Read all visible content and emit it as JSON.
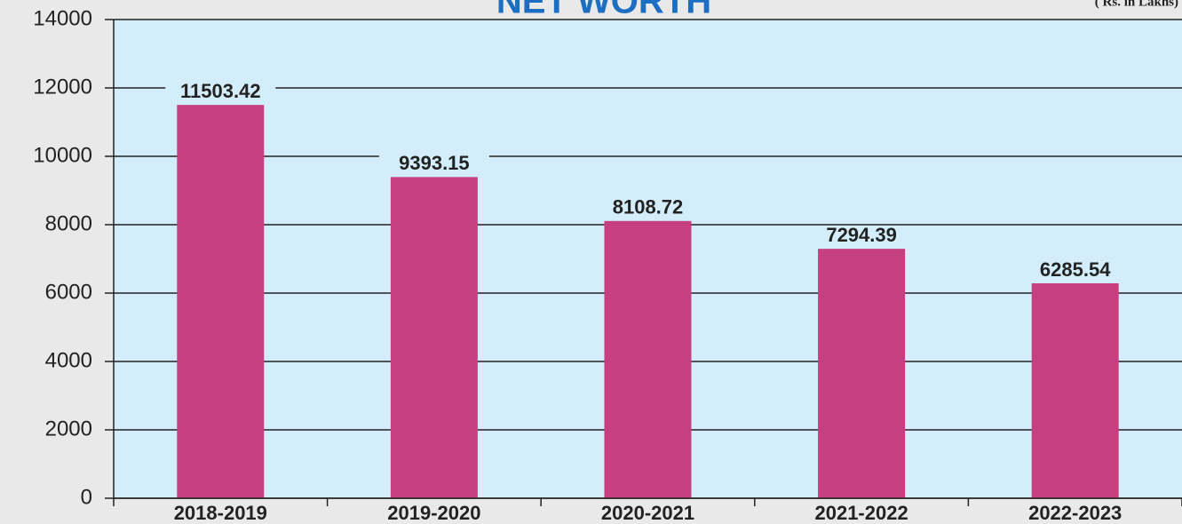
{
  "chart_data": {
    "type": "bar",
    "title": "NET WORTH",
    "annotation": "( Rs. in Lakhs)",
    "categories": [
      "2018-2019",
      "2019-2020",
      "2020-2021",
      "2021-2022",
      "2022-2023"
    ],
    "values": [
      11503.42,
      9393.15,
      8108.72,
      7294.39,
      6285.54
    ],
    "color": "#c63f7e",
    "ylim": [
      0,
      14000
    ],
    "yticks": [
      0,
      2000,
      4000,
      6000,
      8000,
      10000,
      12000,
      14000
    ],
    "grid": true
  }
}
